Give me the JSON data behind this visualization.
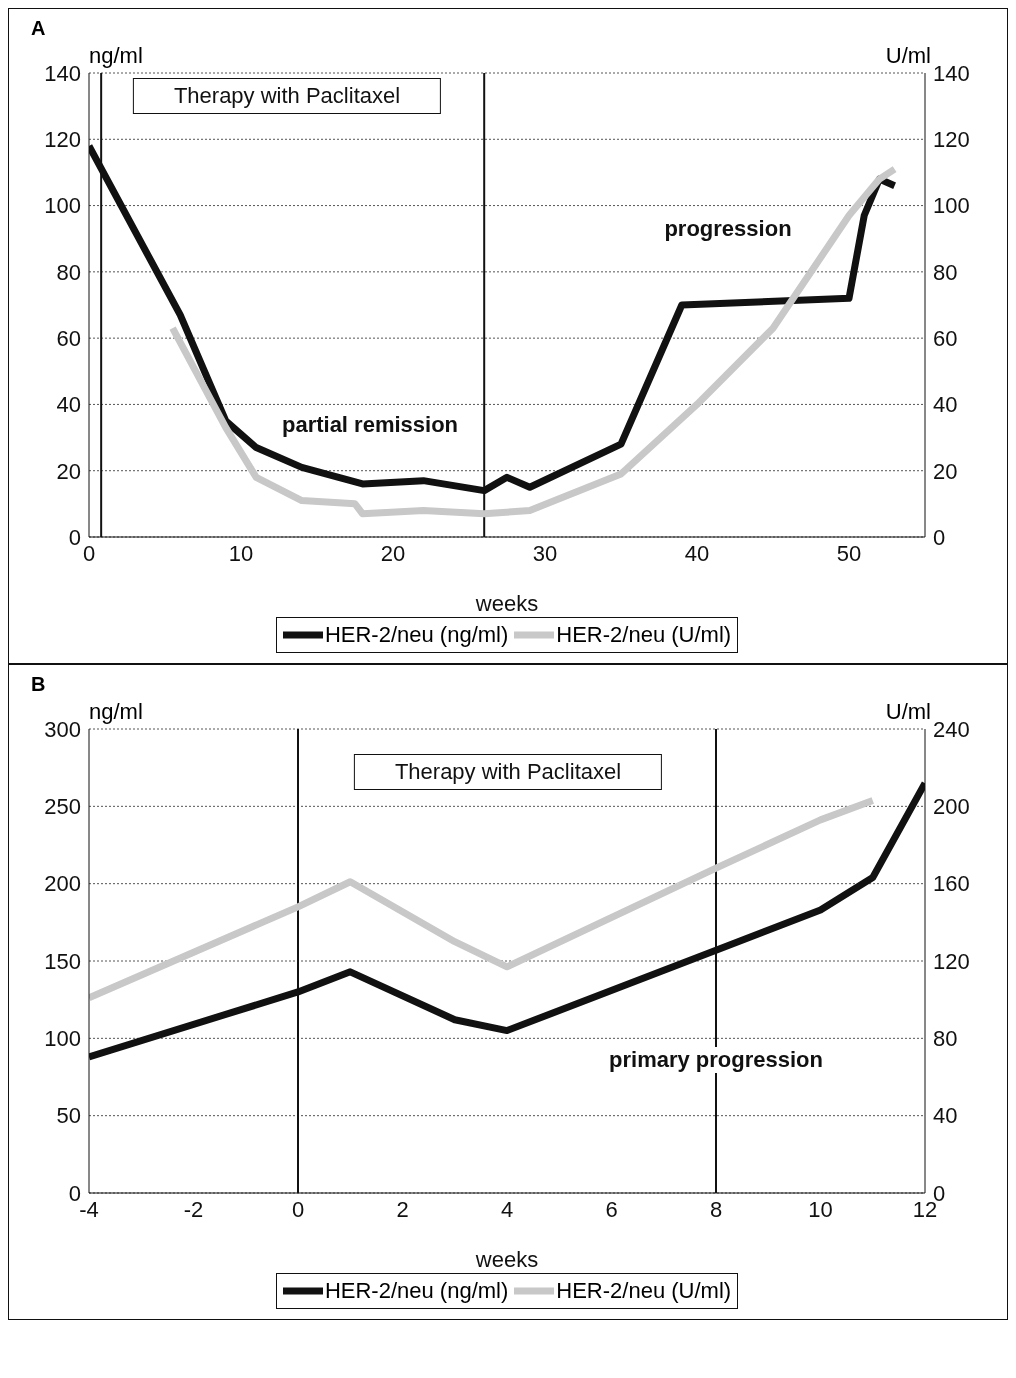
{
  "chart_data": [
    {
      "type": "line",
      "title": "A",
      "xlabel": "weeks",
      "ylabel": "ng/ml",
      "y2label": "U/ml",
      "xlim": [
        0,
        55
      ],
      "xticks": [
        0,
        10,
        20,
        30,
        40,
        50
      ],
      "ylim": [
        0,
        140
      ],
      "yticks": [
        0,
        20,
        40,
        60,
        80,
        100,
        120,
        140
      ],
      "y2lim": [
        0,
        140
      ],
      "y2ticks": [
        0,
        20,
        40,
        60,
        80,
        100,
        120,
        140
      ],
      "grid": "y",
      "legend": "bottom",
      "marker": "none",
      "line_style": "solid",
      "series": [
        {
          "name": "HER-2/neu (ng/ml)",
          "color": "#111111",
          "x": [
            0,
            6,
            9,
            11,
            14,
            18,
            22,
            26,
            27.5,
            29,
            35,
            39,
            50,
            51,
            52,
            53
          ],
          "values": [
            118,
            67,
            35,
            27,
            21,
            16,
            17,
            14,
            18,
            15,
            28,
            70,
            72,
            97,
            108,
            106
          ]
        },
        {
          "name": "HER-2/neu (U/ml)",
          "color": "#c8c8c8",
          "axis": "y2",
          "x": [
            5.5,
            9,
            11,
            14,
            17.5,
            18,
            22,
            26,
            29,
            35,
            40,
            45,
            50,
            52,
            53
          ],
          "values": [
            63,
            33,
            18,
            11,
            10,
            7,
            8,
            7,
            8,
            19,
            40,
            63,
            97,
            108,
            111
          ]
        }
      ],
      "ref_lines": [
        {
          "axis": "x",
          "value": 0.8,
          "color": "#111111"
        },
        {
          "axis": "x",
          "value": 26,
          "color": "#111111"
        }
      ],
      "annotations": [
        "Therapy with Paclitaxel",
        "partial remission",
        "progression"
      ]
    },
    {
      "type": "line",
      "title": "B",
      "xlabel": "weeks",
      "ylabel": "ng/ml",
      "y2label": "U/ml",
      "xlim": [
        -4,
        12
      ],
      "xticks": [
        -4,
        -2,
        0,
        2,
        4,
        6,
        8,
        10,
        12
      ],
      "ylim": [
        0,
        300
      ],
      "yticks": [
        0,
        50,
        100,
        150,
        200,
        250,
        300
      ],
      "y2lim": [
        0,
        240
      ],
      "y2ticks": [
        0,
        40,
        80,
        120,
        160,
        200,
        240
      ],
      "grid": "y",
      "legend": "bottom",
      "marker": "none",
      "line_style": "solid",
      "series": [
        {
          "name": "HER-2/neu (ng/ml)",
          "color": "#111111",
          "x": [
            -4,
            0,
            1,
            3,
            4,
            8,
            10,
            11,
            12
          ],
          "values": [
            88,
            130,
            143,
            112,
            105,
            157,
            183,
            204,
            265
          ]
        },
        {
          "name": "HER-2/neu (U/ml)",
          "color": "#c8c8c8",
          "axis": "y2",
          "x": [
            -4,
            0,
            1,
            3,
            4,
            8,
            10,
            11
          ],
          "values": [
            101,
            148,
            161,
            130,
            117,
            168,
            193,
            203
          ]
        }
      ],
      "ref_lines": [
        {
          "axis": "x",
          "value": 0,
          "color": "#111111"
        },
        {
          "axis": "x",
          "value": 8,
          "color": "#111111"
        }
      ],
      "annotations": [
        "Therapy with Paclitaxel",
        "primary progression"
      ]
    }
  ]
}
